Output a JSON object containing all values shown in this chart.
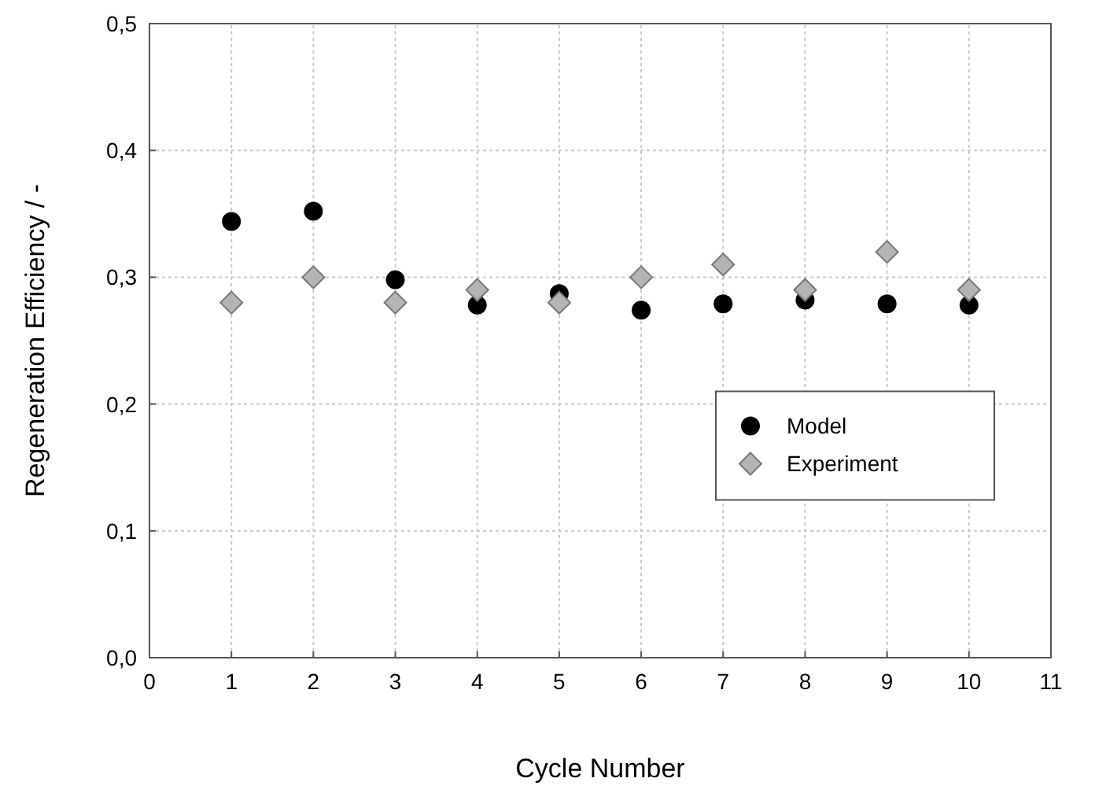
{
  "chart_data": {
    "type": "scatter",
    "xlabel": "Cycle Number",
    "ylabel": "Regeneration Efficiency / -",
    "x": [
      1,
      2,
      3,
      4,
      5,
      6,
      7,
      8,
      9,
      10
    ],
    "series": [
      {
        "name": "Model",
        "color": "#000000",
        "marker": "circle",
        "values": [
          0.344,
          0.352,
          0.298,
          0.278,
          0.287,
          0.274,
          0.279,
          0.282,
          0.279,
          0.278
        ]
      },
      {
        "name": "Experiment",
        "color": "#b4b4b4",
        "marker": "diamond",
        "values": [
          0.28,
          0.3,
          0.28,
          0.29,
          0.28,
          0.3,
          0.31,
          0.29,
          0.32,
          0.29
        ]
      }
    ],
    "xlim": [
      0,
      11
    ],
    "xticks": [
      0,
      1,
      2,
      3,
      4,
      5,
      6,
      7,
      8,
      9,
      10,
      11
    ],
    "ylim": [
      0,
      0.5
    ],
    "yticks": [
      {
        "value": 0,
        "label": "0,0"
      },
      {
        "value": 0.1,
        "label": "0,1"
      },
      {
        "value": 0.2,
        "label": "0,2"
      },
      {
        "value": 0.3,
        "label": "0,3"
      },
      {
        "value": 0.4,
        "label": "0,4"
      },
      {
        "value": 0.5,
        "label": "0,5"
      }
    ],
    "grid": true,
    "legend": "right"
  }
}
